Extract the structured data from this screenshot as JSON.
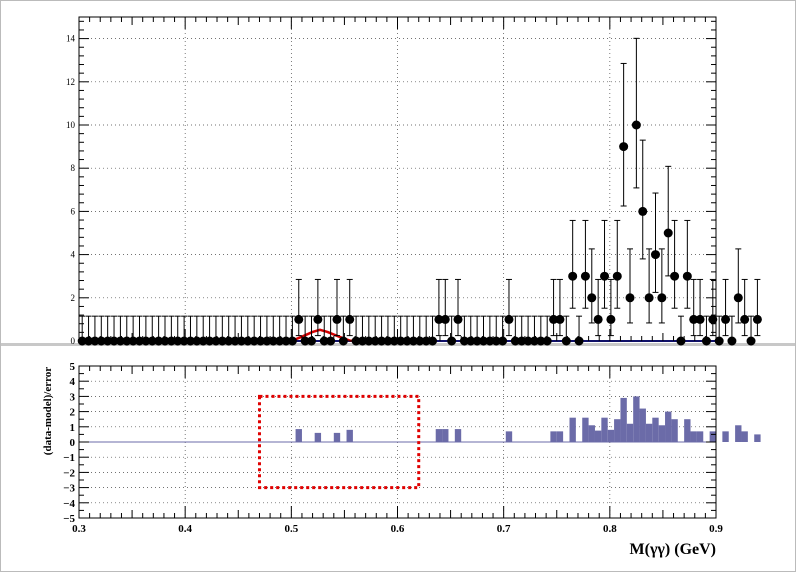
{
  "chart_data": [
    {
      "type": "scatter",
      "panel": "top",
      "title": "",
      "xlabel": "",
      "ylabel": "",
      "xlim": [
        0.3,
        0.9
      ],
      "ylim": [
        0,
        15
      ],
      "x_ticks": [
        "0.3",
        "0.4",
        "0.5",
        "0.6",
        "0.7",
        "0.8",
        "0.9"
      ],
      "y_ticks": [
        "0",
        "2",
        "4",
        "6",
        "8",
        "10",
        "12",
        "14"
      ],
      "grid": true,
      "bin_width": 0.006,
      "x_start": 0.303,
      "series": [
        {
          "style": "points-with-error-bars",
          "values": [
            0,
            0,
            0,
            0,
            0,
            0,
            0,
            0,
            0,
            0,
            0,
            0,
            0,
            0,
            0,
            0,
            0,
            0,
            0,
            0,
            0,
            0,
            0,
            0,
            0,
            0,
            0,
            0,
            0,
            0,
            0,
            0,
            0,
            0,
            1,
            0,
            0,
            1,
            0,
            0,
            1,
            0,
            1,
            0,
            0,
            0,
            0,
            0,
            0,
            0,
            0,
            0,
            0,
            0,
            0,
            0,
            1,
            1,
            0,
            1,
            0,
            0,
            0,
            0,
            0,
            0,
            0,
            1,
            0,
            0,
            0,
            0,
            0,
            0,
            1,
            1,
            0,
            3,
            0,
            3,
            2,
            1,
            3,
            1,
            3,
            9,
            2,
            10,
            6,
            2,
            4,
            2,
            5,
            3,
            0,
            3,
            1,
            1,
            0,
            1,
            0,
            1,
            0,
            2,
            1,
            0,
            1
          ]
        },
        {
          "style": "line",
          "color": "#d40000",
          "x": [
            0.3,
            0.5,
            0.51,
            0.52,
            0.527,
            0.534,
            0.545,
            0.555,
            0.62
          ],
          "y": [
            0,
            0,
            0.2,
            0.42,
            0.52,
            0.42,
            0.2,
            0.02,
            0
          ]
        },
        {
          "style": "line",
          "color": "#2020d0",
          "x": [
            0.3,
            0.9
          ],
          "y": [
            0,
            0
          ]
        }
      ]
    },
    {
      "type": "bar",
      "panel": "bottom",
      "title": "",
      "xlabel": "M(γγ) (GeV)",
      "ylabel": "(data-model)/error",
      "xlim": [
        0.3,
        0.9
      ],
      "ylim": [
        -5,
        5
      ],
      "x_ticks": [
        "0.3",
        "0.4",
        "0.5",
        "0.6",
        "0.7",
        "0.8",
        "0.9"
      ],
      "y_ticks": [
        "−5",
        "−4",
        "−3",
        "−2",
        "−1",
        "0",
        "1",
        "2",
        "3",
        "4",
        "5"
      ],
      "grid": true,
      "bar_color": "#6b6ba8",
      "bin_width": 0.006,
      "x_start": 0.303,
      "values": [
        0,
        0,
        0,
        0,
        0,
        0,
        0,
        0,
        0,
        0,
        0,
        0,
        0,
        0,
        0,
        0,
        0,
        0,
        0,
        0,
        0,
        0,
        0,
        0,
        0,
        0,
        0,
        0,
        0,
        0,
        0,
        0,
        0,
        0,
        0.85,
        0,
        0,
        0.6,
        0,
        0,
        0.6,
        0,
        0.8,
        0,
        0,
        0,
        0,
        0,
        0,
        0,
        0,
        0,
        0,
        0,
        0,
        0,
        0.85,
        0.85,
        0,
        0.85,
        0,
        0,
        0,
        0,
        0,
        0,
        0,
        0.7,
        0,
        0,
        0,
        0,
        0,
        0,
        0.7,
        0.7,
        0,
        1.6,
        0,
        1.6,
        1.1,
        0.75,
        1.6,
        0.8,
        1.5,
        2.9,
        1.2,
        3.0,
        2.2,
        1.2,
        1.6,
        1.1,
        2.0,
        1.5,
        0,
        1.5,
        0.7,
        0.7,
        0,
        0.7,
        0,
        0.7,
        0,
        1.1,
        0.7,
        0,
        0.5
      ]
    }
  ],
  "annotation": {
    "type": "dotted-rectangle",
    "color": "#e00000",
    "x_range": [
      0.47,
      0.62
    ],
    "y_range": [
      -3,
      3
    ]
  }
}
